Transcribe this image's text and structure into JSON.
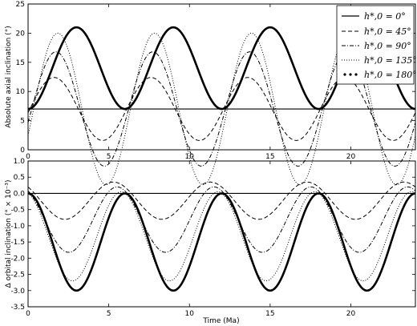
{
  "chart_data": [
    {
      "type": "line",
      "ylabel": "Absolute axial inclination (°)",
      "xlabel": "",
      "xlim": [
        0,
        24
      ],
      "ylim": [
        0,
        25
      ],
      "xticks": [
        "0",
        "5",
        "10",
        "15",
        "20"
      ],
      "yticks": [
        "0",
        "5",
        "10",
        "15",
        "20",
        "25"
      ],
      "period_ma": 6,
      "legend": {
        "placement": "top-right",
        "entries": [
          "h*,0 = 0°",
          "h*,0 = 45°",
          "h*,0 = 90°",
          "h*,0 = 135°",
          "h*,0 = 180°"
        ]
      },
      "series": [
        {
          "name": "h*,0 = 0°",
          "style": "solid-thin",
          "constant": 7.0
        },
        {
          "name": "h*,0 = 45°",
          "style": "dashed",
          "center": 7.0,
          "amplitude": 5.4,
          "phase_shift": 0.0
        },
        {
          "name": "h*,0 = 90°",
          "style": "dashdot",
          "center": 7.0,
          "amplitude": 9.8,
          "phase_shift": 0.0
        },
        {
          "name": "h*,0 = 135°",
          "style": "dotted",
          "center": 7.0,
          "amplitude": 13.0,
          "phase_shift": 0.0
        },
        {
          "name": "h*,0 = 180°",
          "style": "solid-thick",
          "min": 7.0,
          "max": 21.0
        }
      ]
    },
    {
      "type": "line",
      "ylabel": "Δ orbital inclination (° × 10⁻³)",
      "xlabel": "Time (Ma)",
      "xlim": [
        0,
        24
      ],
      "ylim": [
        -3.5,
        1.0
      ],
      "xticks": [
        "0",
        "5",
        "10",
        "15",
        "20"
      ],
      "yticks": [
        "1.0",
        "0.5",
        "0.0",
        "-0.5",
        "-1.0",
        "-1.5",
        "-2.0",
        "-2.5",
        "-3.0",
        "-3.5"
      ],
      "period_ma": 6,
      "series": [
        {
          "name": "h*,0 = 0°",
          "style": "solid-thin",
          "constant": 0.0
        },
        {
          "name": "h*,0 = 45°",
          "style": "dashed",
          "min": -0.8,
          "max": 0.35
        },
        {
          "name": "h*,0 = 90°",
          "style": "dashdot",
          "min": -1.82,
          "max": 0.2
        },
        {
          "name": "h*,0 = 135°",
          "style": "dotted",
          "min": -2.7,
          "max": 0.05
        },
        {
          "name": "h*,0 = 180°",
          "style": "solid-thick",
          "min": -3.0,
          "max": 0.0
        }
      ]
    }
  ]
}
